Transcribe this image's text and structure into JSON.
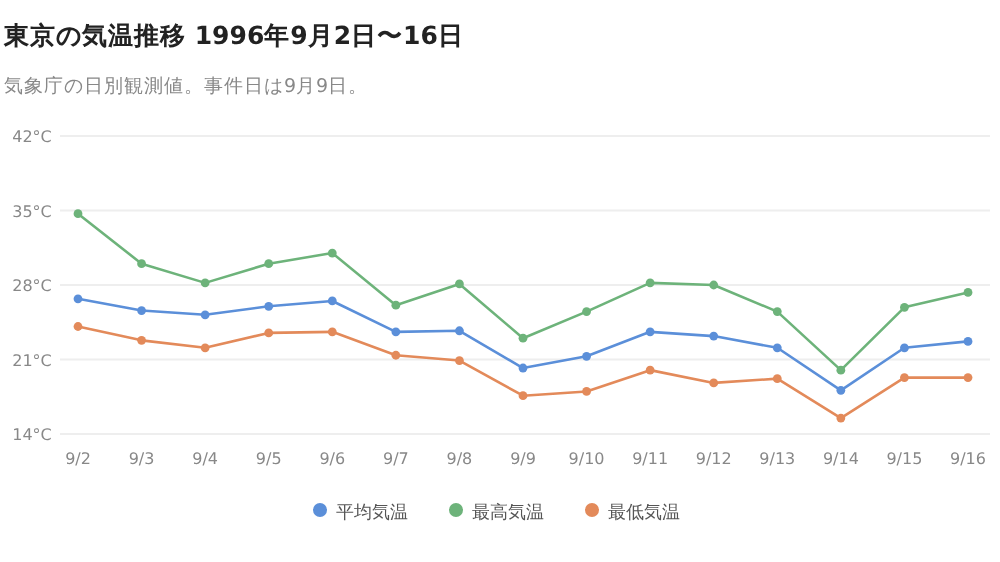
{
  "chart_data": {
    "type": "line",
    "title": "東京の気温推移 1996年9月2日〜16日",
    "subtitle": "気象庁の日別観測値。事件日は9月9日。",
    "categories": [
      "9/2",
      "9/3",
      "9/4",
      "9/5",
      "9/6",
      "9/7",
      "9/8",
      "9/9",
      "9/10",
      "9/11",
      "9/12",
      "9/13",
      "9/14",
      "9/15",
      "9/16"
    ],
    "series": [
      {
        "name": "平均気温",
        "color": "#5b8fd9",
        "values": [
          26.7,
          25.6,
          25.2,
          26.0,
          26.5,
          23.6,
          23.7,
          20.2,
          21.3,
          23.6,
          23.2,
          22.1,
          18.1,
          22.1,
          22.7
        ]
      },
      {
        "name": "最高気温",
        "color": "#6db37a",
        "values": [
          34.7,
          30.0,
          28.2,
          30.0,
          31.0,
          26.1,
          28.1,
          23.0,
          25.5,
          28.2,
          28.0,
          25.5,
          20.0,
          25.9,
          27.3
        ]
      },
      {
        "name": "最低気温",
        "color": "#e38a5a",
        "values": [
          24.1,
          22.8,
          22.1,
          23.5,
          23.6,
          21.4,
          20.9,
          17.6,
          18.0,
          20.0,
          18.8,
          19.2,
          15.5,
          19.3,
          19.3
        ]
      }
    ],
    "ylim": [
      14,
      42
    ],
    "yticks": [
      {
        "value": 14,
        "label": "14°C"
      },
      {
        "value": 21,
        "label": "21°C"
      },
      {
        "value": 28,
        "label": "28°C"
      },
      {
        "value": 35,
        "label": "35°C"
      },
      {
        "value": 42,
        "label": "42°C"
      }
    ],
    "grid": "y",
    "legend": "bottom",
    "marker": "circle",
    "line_style": "solid"
  }
}
